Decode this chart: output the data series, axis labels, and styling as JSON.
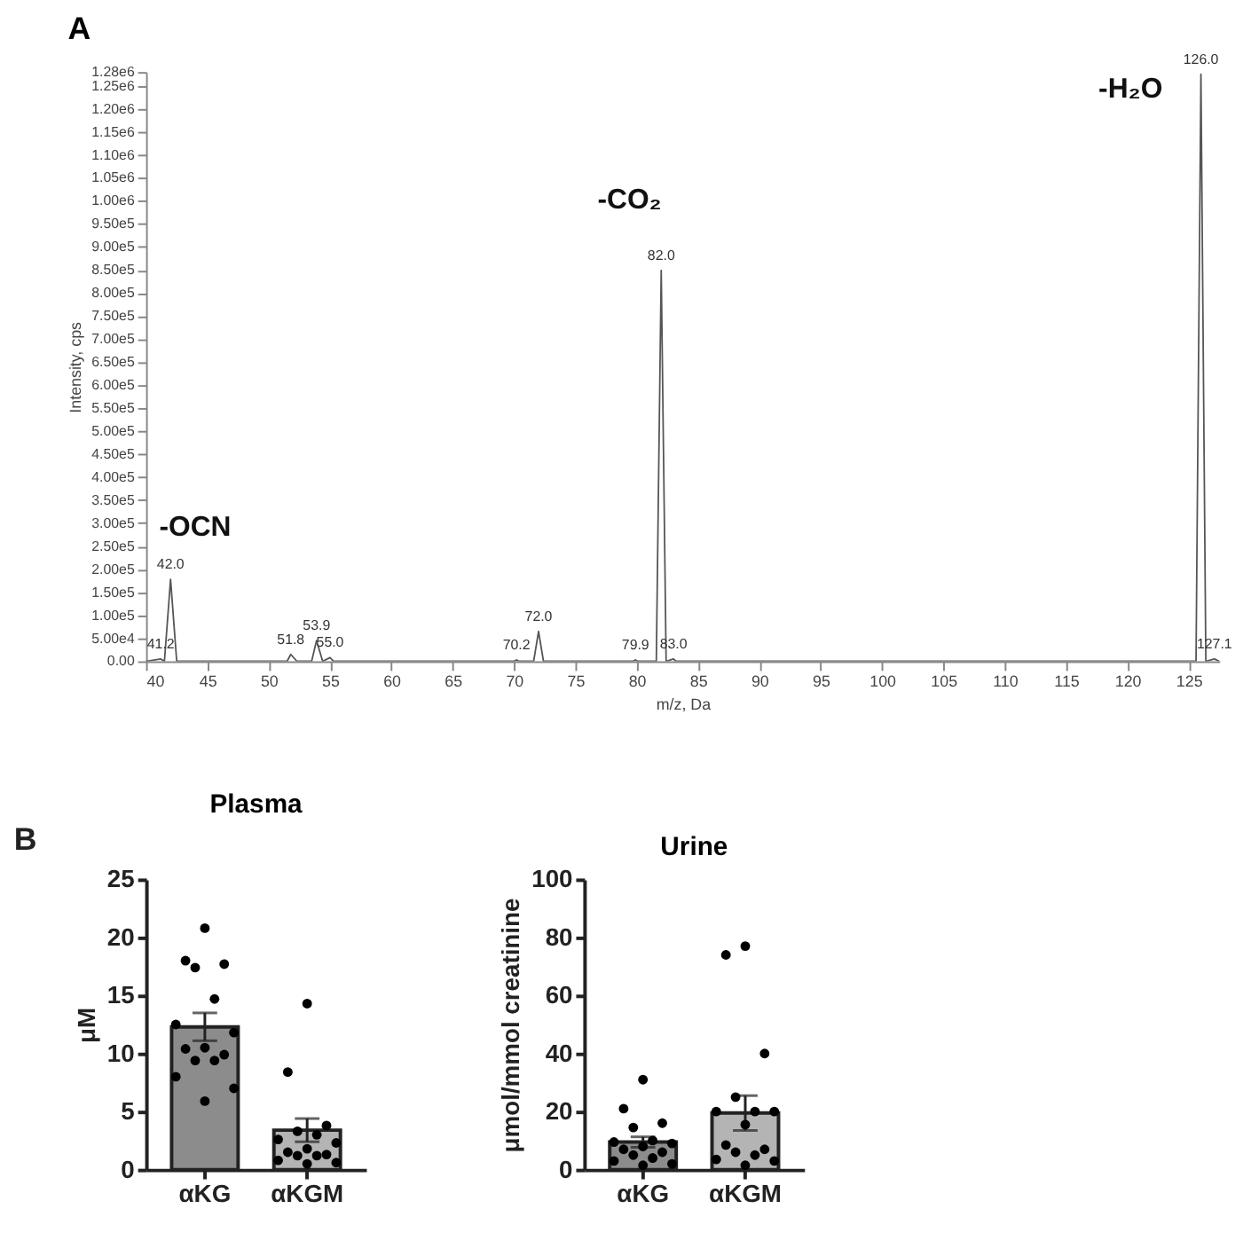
{
  "chart_data": [
    {
      "type": "line",
      "title": "A",
      "xlabel": "m/z, Da",
      "ylabel": "Intensity, cps",
      "xlim": [
        40,
        127.5
      ],
      "ylim": [
        0,
        1280000
      ],
      "xticks": [
        40,
        45,
        50,
        55,
        60,
        65,
        70,
        75,
        80,
        85,
        90,
        95,
        100,
        105,
        110,
        115,
        120,
        125
      ],
      "yticks": [
        {
          "value": 0,
          "label": "0.00"
        },
        {
          "value": 50000,
          "label": "5.00e4"
        },
        {
          "value": 100000,
          "label": "1.00e5"
        },
        {
          "value": 150000,
          "label": "1.50e5"
        },
        {
          "value": 200000,
          "label": "2.00e5"
        },
        {
          "value": 250000,
          "label": "2.50e5"
        },
        {
          "value": 300000,
          "label": "3.00e5"
        },
        {
          "value": 350000,
          "label": "3.50e5"
        },
        {
          "value": 400000,
          "label": "4.00e5"
        },
        {
          "value": 450000,
          "label": "4.50e5"
        },
        {
          "value": 500000,
          "label": "5.00e5"
        },
        {
          "value": 550000,
          "label": "5.50e5"
        },
        {
          "value": 600000,
          "label": "6.00e5"
        },
        {
          "value": 650000,
          "label": "6.50e5"
        },
        {
          "value": 700000,
          "label": "7.00e5"
        },
        {
          "value": 750000,
          "label": "7.50e5"
        },
        {
          "value": 800000,
          "label": "8.00e5"
        },
        {
          "value": 850000,
          "label": "8.50e5"
        },
        {
          "value": 900000,
          "label": "9.00e5"
        },
        {
          "value": 950000,
          "label": "9.50e5"
        },
        {
          "value": 1000000,
          "label": "1.00e6"
        },
        {
          "value": 1050000,
          "label": "1.05e6"
        },
        {
          "value": 1100000,
          "label": "1.10e6"
        },
        {
          "value": 1150000,
          "label": "1.15e6"
        },
        {
          "value": 1200000,
          "label": "1.20e6"
        },
        {
          "value": 1250000,
          "label": "1.25e6"
        },
        {
          "value": 1280000,
          "label": "1.28e6"
        }
      ],
      "series": [
        {
          "color": "#555555",
          "x": [
            40,
            41.2,
            41.5,
            42.0,
            42.5,
            51.5,
            51.8,
            52.3,
            53.5,
            53.9,
            54.4,
            55.0,
            55.3,
            70.0,
            70.2,
            70.4,
            71.6,
            72.0,
            72.4,
            79.7,
            79.9,
            80.1,
            81.6,
            82.0,
            82.4,
            83.0,
            83.2,
            125.6,
            126.0,
            126.4,
            127.1,
            127.5
          ],
          "values": [
            0,
            5000,
            0,
            178000,
            0,
            0,
            15000,
            0,
            0,
            45000,
            0,
            8000,
            0,
            0,
            3000,
            0,
            0,
            65000,
            0,
            0,
            3000,
            0,
            0,
            849000,
            0,
            5000,
            0,
            0,
            1275000,
            0,
            5000,
            0
          ]
        }
      ],
      "annotations": [
        {
          "text": "-OCN",
          "x": 42.0,
          "y": 178000
        },
        {
          "text": "-CO₂",
          "x": 82.0,
          "y": 849000
        },
        {
          "text": "-H₂O",
          "x": 126.0,
          "y": 1275000
        },
        {
          "text": "41.2",
          "x": 41.2,
          "y": 5000
        },
        {
          "text": "42.0",
          "x": 42.0,
          "y": 178000
        },
        {
          "text": "51.8",
          "x": 51.8,
          "y": 15000
        },
        {
          "text": "53.9",
          "x": 53.9,
          "y": 45000
        },
        {
          "text": "55.0",
          "x": 55.0,
          "y": 8000
        },
        {
          "text": "70.2",
          "x": 70.2,
          "y": 3000
        },
        {
          "text": "72.0",
          "x": 72.0,
          "y": 65000
        },
        {
          "text": "79.9",
          "x": 79.9,
          "y": 3000
        },
        {
          "text": "82.0",
          "x": 82.0,
          "y": 849000
        },
        {
          "text": "83.0",
          "x": 83.0,
          "y": 5000
        },
        {
          "text": "126.0",
          "x": 126.0,
          "y": 1275000
        },
        {
          "text": "127.1",
          "x": 127.1,
          "y": 5000
        }
      ]
    },
    {
      "type": "bar",
      "title": "Plasma",
      "ylabel": "μM",
      "categories": [
        "αKG",
        "αKGM"
      ],
      "ylim": [
        0,
        25
      ],
      "yticks": [
        0,
        5,
        10,
        15,
        20,
        25
      ],
      "annotations": [
        "B"
      ],
      "series": [
        {
          "type": "bar",
          "values": [
            12.3,
            3.4
          ],
          "colors": [
            "#8c8c8c",
            "#b4b4b4"
          ],
          "errors": [
            1.2,
            1.0
          ]
        },
        {
          "type": "scatter",
          "color": "#000000",
          "x": [
            "αKG",
            "αKG",
            "αKG",
            "αKG",
            "αKG",
            "αKG",
            "αKG",
            "αKG",
            "αKG",
            "αKG",
            "αKG",
            "αKG",
            "αKG",
            "αKG",
            "αKG",
            "αKGM",
            "αKGM",
            "αKGM",
            "αKGM",
            "αKGM",
            "αKGM",
            "αKGM",
            "αKGM",
            "αKGM",
            "αKGM",
            "αKGM",
            "αKGM",
            "αKGM",
            "αKGM",
            "αKGM"
          ],
          "values": [
            20.8,
            18.0,
            17.7,
            17.4,
            14.7,
            12.5,
            11.8,
            10.5,
            10.4,
            9.9,
            9.4,
            9.4,
            8.0,
            7.0,
            5.9,
            14.3,
            8.4,
            3.8,
            3.3,
            3.0,
            2.6,
            2.3,
            1.8,
            1.5,
            1.3,
            1.2,
            1.2,
            0.8,
            0.6,
            0.5
          ]
        }
      ]
    },
    {
      "type": "bar",
      "title": "Urine",
      "ylabel": "μmol/mmol creatinine",
      "categories": [
        "αKG",
        "αKGM"
      ],
      "ylim": [
        0,
        100
      ],
      "yticks": [
        0,
        20,
        40,
        60,
        80,
        100
      ],
      "series": [
        {
          "type": "bar",
          "values": [
            9.5,
            19.5
          ],
          "colors": [
            "#8c8c8c",
            "#b4b4b4"
          ],
          "errors": [
            1.8,
            6.0
          ]
        },
        {
          "type": "scatter",
          "color": "#000000",
          "x": [
            "αKG",
            "αKG",
            "αKG",
            "αKG",
            "αKG",
            "αKG",
            "αKG",
            "αKG",
            "αKG",
            "αKG",
            "αKG",
            "αKG",
            "αKG",
            "αKG",
            "αKG",
            "αKGM",
            "αKGM",
            "αKGM",
            "αKGM",
            "αKGM",
            "αKGM",
            "αKGM",
            "αKGM",
            "αKGM",
            "αKGM",
            "αKGM",
            "αKGM",
            "αKGM",
            "αKGM",
            "αKGM"
          ],
          "values": [
            31,
            21,
            16,
            14.5,
            10,
            9.5,
            9,
            8,
            7,
            6,
            5,
            4,
            3,
            2,
            1.5,
            77,
            74,
            40,
            25,
            20,
            20,
            20,
            15.5,
            8.5,
            7,
            6,
            5,
            3.5,
            3,
            1.5
          ]
        }
      ]
    }
  ]
}
